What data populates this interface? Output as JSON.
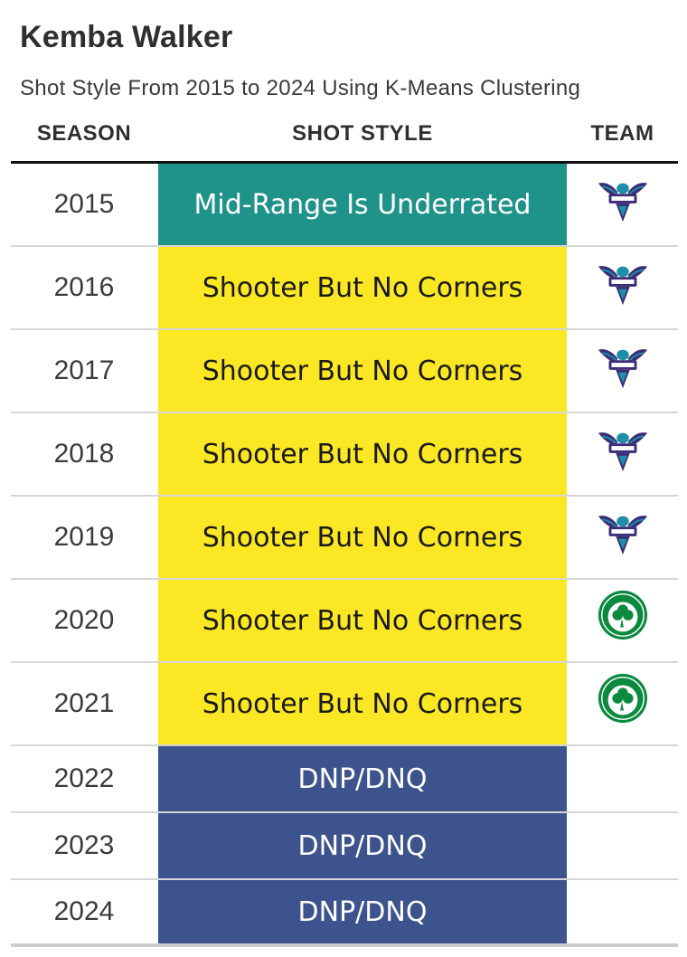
{
  "title": "Kemba Walker",
  "subtitle": "Shot Style From 2015 to 2024 Using K-Means Clustering",
  "headers": {
    "season": "SEASON",
    "shot_style": "SHOT STYLE",
    "team": "TEAM"
  },
  "colors": {
    "mid_range": "#1f938a",
    "shooter": "#fbe723",
    "dnp": "#3c538d",
    "hornets_purple": "#3d2c78",
    "hornets_teal": "#1d8fa6",
    "celtics_green": "#0b8a3f"
  },
  "rows": [
    {
      "season": "2015",
      "shot_style": "Mid-Range Is Underrated",
      "style_color": "#1f938a",
      "text_color": "#ffffff",
      "team": "hornets-logo"
    },
    {
      "season": "2016",
      "shot_style": "Shooter But No Corners",
      "style_color": "#fbe723",
      "text_color": "#1a1a1a",
      "team": "hornets-logo"
    },
    {
      "season": "2017",
      "shot_style": "Shooter But No Corners",
      "style_color": "#fbe723",
      "text_color": "#1a1a1a",
      "team": "hornets-logo"
    },
    {
      "season": "2018",
      "shot_style": "Shooter But No Corners",
      "style_color": "#fbe723",
      "text_color": "#1a1a1a",
      "team": "hornets-logo"
    },
    {
      "season": "2019",
      "shot_style": "Shooter But No Corners",
      "style_color": "#fbe723",
      "text_color": "#1a1a1a",
      "team": "hornets-logo"
    },
    {
      "season": "2020",
      "shot_style": "Shooter But No Corners",
      "style_color": "#fbe723",
      "text_color": "#1a1a1a",
      "team": "celtics-logo"
    },
    {
      "season": "2021",
      "shot_style": "Shooter But No Corners",
      "style_color": "#fbe723",
      "text_color": "#1a1a1a",
      "team": "celtics-logo"
    },
    {
      "season": "2022",
      "shot_style": "DNP/DNQ",
      "style_color": "#3c538d",
      "text_color": "#ffffff",
      "team": ""
    },
    {
      "season": "2023",
      "shot_style": "DNP/DNQ",
      "style_color": "#3c538d",
      "text_color": "#ffffff",
      "team": ""
    },
    {
      "season": "2024",
      "shot_style": "DNP/DNQ",
      "style_color": "#3c538d",
      "text_color": "#ffffff",
      "team": ""
    }
  ]
}
